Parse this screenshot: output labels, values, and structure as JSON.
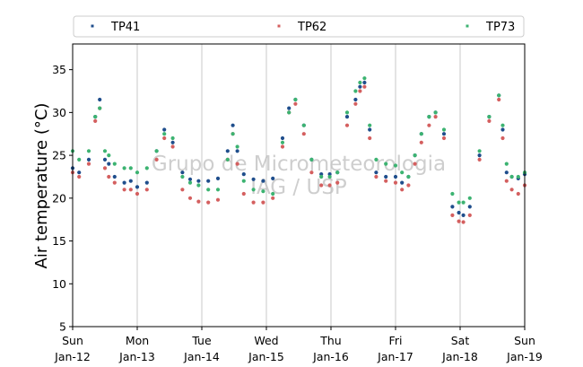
{
  "chart_data": {
    "type": "scatter",
    "ylabel": "Air temperature (°C)",
    "ylim": [
      5,
      38
    ],
    "yticks": [
      5,
      10,
      15,
      20,
      25,
      30,
      35
    ],
    "x_range_days": [
      0,
      7
    ],
    "xticks": [
      {
        "day": 0,
        "weekday": "Sun",
        "date": "Jan-12"
      },
      {
        "day": 1,
        "weekday": "Mon",
        "date": "Jan-13"
      },
      {
        "day": 2,
        "weekday": "Tue",
        "date": "Jan-14"
      },
      {
        "day": 3,
        "weekday": "Wed",
        "date": "Jan-15"
      },
      {
        "day": 4,
        "weekday": "Thu",
        "date": "Jan-16"
      },
      {
        "day": 5,
        "weekday": "Fri",
        "date": "Jan-17"
      },
      {
        "day": 6,
        "weekday": "Sat",
        "date": "Jan-18"
      },
      {
        "day": 7,
        "weekday": "Sun",
        "date": "Jan-19"
      }
    ],
    "grid": "vertical",
    "legend_position": "top",
    "watermark": [
      "Grupo de Micrometeorologia",
      "IAG / USP"
    ],
    "series": [
      {
        "name": "TP41",
        "color": "#1f4e8c",
        "x": [
          0,
          0.1,
          0.25,
          0.35,
          0.42,
          0.5,
          0.56,
          0.65,
          0.8,
          0.9,
          1.0,
          1.15,
          1.3,
          1.42,
          1.55,
          1.7,
          1.82,
          1.95,
          2.1,
          2.25,
          2.4,
          2.48,
          2.55,
          2.65,
          2.8,
          2.95,
          3.1,
          3.25,
          3.35,
          3.45,
          3.58,
          3.7,
          3.85,
          3.98,
          4.1,
          4.25,
          4.38,
          4.45,
          4.52,
          4.6,
          4.7,
          4.85,
          5.0,
          5.1,
          5.2,
          5.3,
          5.4,
          5.52,
          5.62,
          5.75,
          5.88,
          5.98,
          6.05,
          6.15,
          6.3,
          6.45,
          6.6,
          6.66,
          6.72,
          6.8,
          6.9,
          7.0
        ],
        "y": [
          23.5,
          23.0,
          24.5,
          29.5,
          31.5,
          24.5,
          24.0,
          22.5,
          21.8,
          22.0,
          21.3,
          21.8,
          25.5,
          28.0,
          26.5,
          23.0,
          22.2,
          22.0,
          22.0,
          22.3,
          25.5,
          28.5,
          25.5,
          22.8,
          22.2,
          22.0,
          22.3,
          27.0,
          30.5,
          31.5,
          28.5,
          24.5,
          22.8,
          22.8,
          23.0,
          29.5,
          31.5,
          33.0,
          33.5,
          28.0,
          23.0,
          22.5,
          22.5,
          21.8,
          22.5,
          25.0,
          27.5,
          29.5,
          30.0,
          27.5,
          19.0,
          18.3,
          18.0,
          19.0,
          25.0,
          29.5,
          32.0,
          28.0,
          23.0,
          22.5,
          22.3,
          22.8
        ]
      },
      {
        "name": "TP62",
        "color": "#d45f5f",
        "x": [
          0,
          0.1,
          0.25,
          0.35,
          0.42,
          0.5,
          0.56,
          0.65,
          0.8,
          0.9,
          1.0,
          1.15,
          1.3,
          1.42,
          1.55,
          1.7,
          1.82,
          1.95,
          2.1,
          2.25,
          2.4,
          2.48,
          2.55,
          2.65,
          2.8,
          2.95,
          3.1,
          3.25,
          3.35,
          3.45,
          3.58,
          3.7,
          3.85,
          3.98,
          4.1,
          4.25,
          4.38,
          4.45,
          4.52,
          4.6,
          4.7,
          4.85,
          5.0,
          5.1,
          5.2,
          5.3,
          5.4,
          5.52,
          5.62,
          5.75,
          5.88,
          5.98,
          6.05,
          6.15,
          6.3,
          6.45,
          6.6,
          6.66,
          6.72,
          6.8,
          6.9,
          7.0
        ],
        "y": [
          23.0,
          22.5,
          24.0,
          29.0,
          30.5,
          23.5,
          22.5,
          21.8,
          21.0,
          21.0,
          20.5,
          21.0,
          24.5,
          27.0,
          26.0,
          21.0,
          20.0,
          19.6,
          19.5,
          19.8,
          24.5,
          27.5,
          24.0,
          20.5,
          19.5,
          19.5,
          20.0,
          26.0,
          30.0,
          31.0,
          27.5,
          23.0,
          21.5,
          21.5,
          21.8,
          28.5,
          31.0,
          32.5,
          33.0,
          27.0,
          22.5,
          22.0,
          21.8,
          21.0,
          21.5,
          24.0,
          26.5,
          28.5,
          29.5,
          27.0,
          18.0,
          17.3,
          17.2,
          18.0,
          24.5,
          29.0,
          31.5,
          27.0,
          22.0,
          21.0,
          20.5,
          21.5
        ]
      },
      {
        "name": "TP73",
        "color": "#3cb371",
        "x": [
          0,
          0.1,
          0.25,
          0.35,
          0.42,
          0.5,
          0.56,
          0.65,
          0.8,
          0.9,
          1.0,
          1.15,
          1.3,
          1.42,
          1.55,
          1.7,
          1.82,
          1.95,
          2.1,
          2.25,
          2.4,
          2.48,
          2.55,
          2.65,
          2.8,
          2.95,
          3.1,
          3.25,
          3.35,
          3.45,
          3.58,
          3.7,
          3.85,
          3.98,
          4.1,
          4.25,
          4.38,
          4.45,
          4.52,
          4.6,
          4.7,
          4.85,
          5.0,
          5.1,
          5.2,
          5.3,
          5.4,
          5.52,
          5.62,
          5.75,
          5.88,
          5.98,
          6.05,
          6.15,
          6.3,
          6.45,
          6.6,
          6.66,
          6.72,
          6.8,
          6.9,
          7.0
        ],
        "y": [
          25.5,
          24.5,
          25.5,
          29.5,
          30.5,
          25.5,
          25.0,
          24.0,
          23.5,
          23.5,
          23.0,
          23.5,
          25.5,
          27.5,
          27.0,
          22.5,
          21.8,
          21.5,
          21.0,
          21.0,
          24.5,
          27.5,
          26.0,
          22.0,
          21.0,
          20.8,
          20.5,
          26.5,
          30.0,
          31.5,
          28.5,
          24.5,
          22.5,
          22.5,
          23.0,
          30.0,
          32.5,
          33.5,
          34.0,
          28.5,
          24.5,
          24.0,
          23.8,
          23.0,
          22.5,
          25.0,
          27.5,
          29.5,
          30.0,
          28.0,
          20.5,
          19.5,
          19.5,
          20.0,
          25.5,
          29.5,
          32.0,
          28.5,
          24.0,
          22.5,
          22.5,
          23.0
        ]
      }
    ]
  }
}
